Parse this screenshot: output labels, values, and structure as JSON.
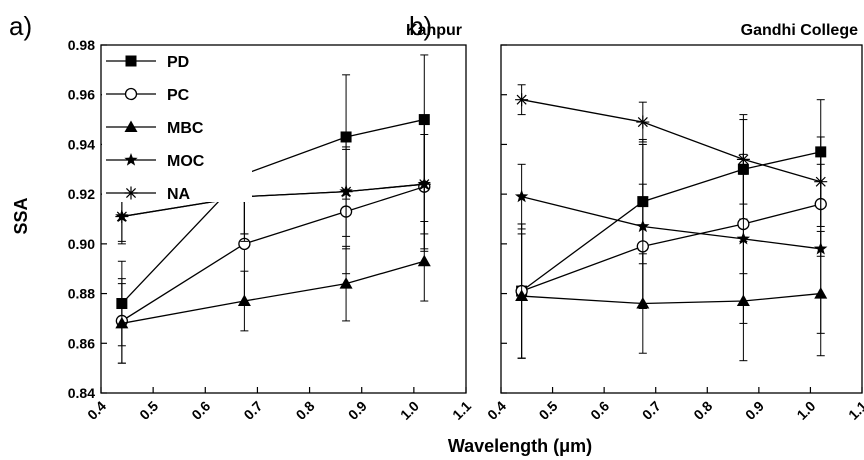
{
  "figure": {
    "xlabel": "Wavelength (μm)",
    "ylabel": "SSA"
  },
  "legend": [
    {
      "name": "PD",
      "marker": "square"
    },
    {
      "name": "PC",
      "marker": "circle"
    },
    {
      "name": "MBC",
      "marker": "triangle"
    },
    {
      "name": "MOC",
      "marker": "star"
    },
    {
      "name": "NA",
      "marker": "asterisk"
    }
  ],
  "chart_data": [
    {
      "type": "line",
      "panel_label": "a)",
      "title": "Kanpur",
      "xlim": [
        0.4,
        1.1
      ],
      "ylim": [
        0.84,
        0.98
      ],
      "xticks": [
        "0.4",
        "0.5",
        "0.6",
        "0.7",
        "0.8",
        "0.9",
        "1.0",
        "1.1"
      ],
      "yticks": [
        "0.84",
        "0.86",
        "0.88",
        "0.90",
        "0.92",
        "0.94",
        "0.96",
        "0.98"
      ],
      "grid": false,
      "legend_position": "upper-left",
      "x": [
        0.44,
        0.675,
        0.87,
        1.02
      ],
      "series": [
        {
          "name": "PD",
          "values": [
            0.876,
            0.928,
            0.943,
            0.95
          ],
          "err": [
            0.017,
            0.024,
            0.025,
            0.026
          ]
        },
        {
          "name": "PC",
          "values": [
            0.869,
            0.9,
            0.913,
            0.923
          ],
          "err": [
            0.017,
            0.024,
            0.025,
            0.026
          ]
        },
        {
          "name": "MBC",
          "values": [
            0.868,
            0.877,
            0.884,
            0.893
          ],
          "err": [
            0.016,
            0.012,
            0.015,
            0.016
          ]
        },
        {
          "name": "MOC",
          "values": [
            0.911,
            0.919,
            0.921,
            0.924
          ],
          "err": [
            0.011,
            0.018,
            0.023,
            0.026
          ]
        },
        {
          "name": "NA",
          "values": [
            0.911,
            0.919,
            0.921,
            0.924
          ],
          "err": [
            0.01,
            0.015,
            0.018,
            0.02
          ]
        }
      ]
    },
    {
      "type": "line",
      "panel_label": "b)",
      "title": "Gandhi College",
      "xlim": [
        0.4,
        1.1
      ],
      "ylim": [
        0.84,
        0.98
      ],
      "xticks": [
        "0.4",
        "0.5",
        "0.6",
        "0.7",
        "0.8",
        "0.9",
        "1.0",
        "1.1"
      ],
      "grid": false,
      "x": [
        0.44,
        0.675,
        0.87,
        1.02
      ],
      "series": [
        {
          "name": "PD",
          "values": [
            0.881,
            0.917,
            0.93,
            0.937
          ],
          "err": [
            0.027,
            0.025,
            0.02,
            0.021
          ]
        },
        {
          "name": "PC",
          "values": [
            0.881,
            0.899,
            0.908,
            0.916
          ],
          "err": [
            0.027,
            0.025,
            0.02,
            0.021
          ]
        },
        {
          "name": "MBC",
          "values": [
            0.879,
            0.876,
            0.877,
            0.88
          ],
          "err": [
            0.025,
            0.02,
            0.024,
            0.025
          ]
        },
        {
          "name": "MOC",
          "values": [
            0.919,
            0.907,
            0.902,
            0.898
          ],
          "err": [
            0.013,
            0.033,
            0.034,
            0.034
          ]
        },
        {
          "name": "NA",
          "values": [
            0.958,
            0.949,
            0.934,
            0.925
          ],
          "err": [
            0.006,
            0.008,
            0.018,
            0.018
          ]
        }
      ]
    }
  ]
}
